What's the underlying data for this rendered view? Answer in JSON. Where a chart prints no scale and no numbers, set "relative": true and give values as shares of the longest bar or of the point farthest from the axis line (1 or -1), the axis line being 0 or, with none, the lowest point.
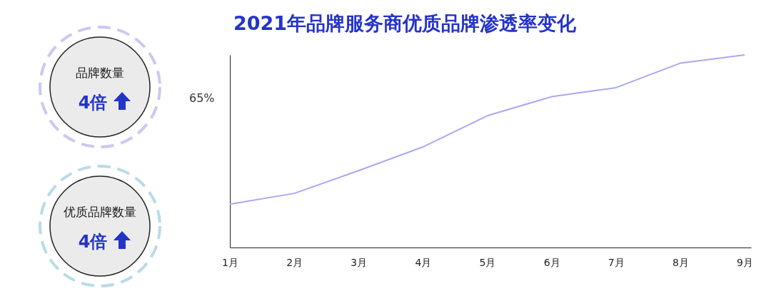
{
  "chart_data": [
    {
      "type": "other",
      "annotations": [
        "品牌数量",
        "4倍",
        "优质品牌数量",
        "4倍"
      ]
    },
    {
      "type": "line",
      "title": "2021年品牌服务商优质品牌渗透率变化",
      "categories": [
        "1月",
        "2月",
        "3月",
        "4月",
        "5月",
        "6月",
        "7月",
        "8月",
        "9月"
      ],
      "series": [
        {
          "color": "#a9a8f0",
          "values": [
            0.225,
            0.281,
            0.399,
            0.522,
            0.684,
            0.783,
            0.83,
            0.957,
            1.0
          ]
        }
      ],
      "relative": true,
      "annotations": [
        "65%"
      ],
      "grid": false,
      "legend": false,
      "marker": "none",
      "line_style": "solid"
    }
  ]
}
